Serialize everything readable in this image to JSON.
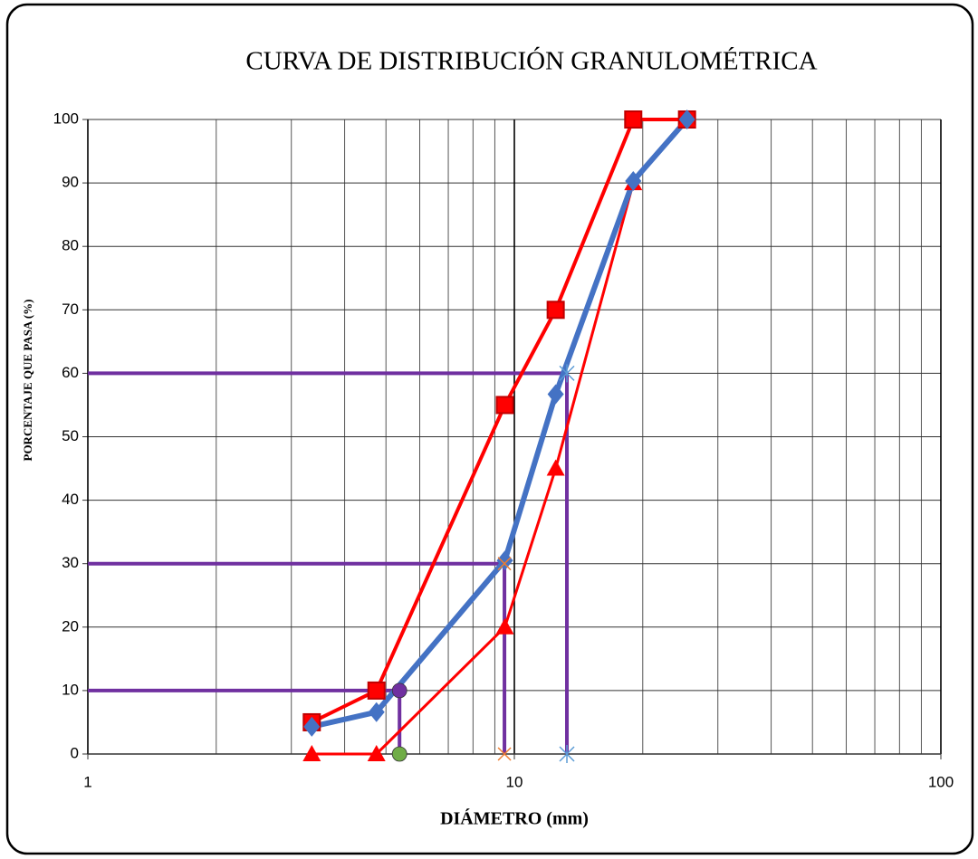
{
  "chart_data": {
    "type": "line",
    "title": "CURVA DE DISTRIBUCIÓN GRANULOMÉTRICA",
    "x_label": "DIÁMETRO (mm)",
    "y_label": "PORCENTAJE QUE PASA (%)",
    "log_x": true,
    "xlim": [
      1,
      100
    ],
    "xticks": [
      1,
      10,
      100
    ],
    "xminorticks": [
      2,
      3,
      4,
      5,
      6,
      7,
      8,
      9,
      20,
      30,
      40,
      50,
      60,
      70,
      80,
      90
    ],
    "ylim": [
      0,
      100
    ],
    "yticks": [
      0,
      10,
      20,
      30,
      40,
      50,
      60,
      70,
      80,
      90,
      100
    ],
    "grid": true,
    "series": [
      {
        "color": "#7030a0",
        "width": 4,
        "marker": "none",
        "x": [
          1,
          13.28,
          13.28
        ],
        "values": [
          60,
          60,
          0
        ]
      },
      {
        "color": "#7030a0",
        "width": 4,
        "marker": "none",
        "x": [
          1,
          9.48,
          9.48
        ],
        "values": [
          30,
          30,
          0
        ]
      },
      {
        "color": "#7030a0",
        "width": 4,
        "marker": "none",
        "x": [
          1,
          5.38,
          5.38
        ],
        "values": [
          10,
          10,
          0
        ]
      },
      {
        "color": "#ff0000",
        "width": 4,
        "marker": "square",
        "x": [
          3.35,
          4.75,
          9.5,
          12.5,
          19,
          25.4
        ],
        "values": [
          5,
          10,
          55,
          70,
          100,
          100
        ]
      },
      {
        "color": "#ff0000",
        "width": 3,
        "marker": "triangle",
        "x": [
          3.35,
          4.75,
          9.5,
          12.5,
          19,
          25.4
        ],
        "values": [
          0,
          0,
          20,
          45,
          90,
          100
        ]
      },
      {
        "color": "#4472c4",
        "width": 6,
        "marker": "diamond",
        "x": [
          3.35,
          4.75,
          9.5,
          12.5,
          19,
          25.4
        ],
        "values": [
          4.3,
          6.6,
          30.5,
          56.7,
          90.3,
          100
        ]
      },
      {
        "color": "#7030a0",
        "width": 0,
        "marker": "circle",
        "x": [
          5.38
        ],
        "values": [
          10
        ]
      },
      {
        "color": "#70ad47",
        "width": 0,
        "marker": "circle",
        "x": [
          5.38
        ],
        "values": [
          0
        ]
      },
      {
        "color": "#ed7d31",
        "width": 0,
        "marker": "cross",
        "x": [
          9.48,
          9.48
        ],
        "values": [
          30,
          0
        ]
      },
      {
        "color": "#5b9bd5",
        "width": 0,
        "marker": "star",
        "x": [
          13.28,
          13.28
        ],
        "values": [
          60,
          0
        ]
      }
    ]
  }
}
